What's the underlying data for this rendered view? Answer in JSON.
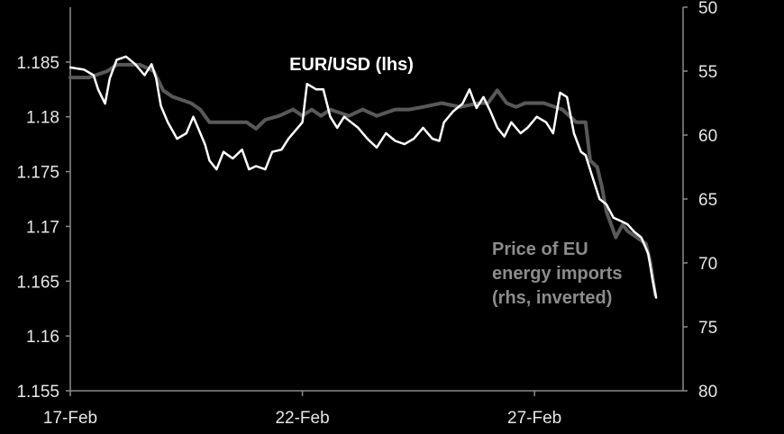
{
  "chart_data": {
    "type": "line",
    "title": "",
    "x_ticks": [
      {
        "day": 0,
        "label": "17-Feb"
      },
      {
        "day": 5,
        "label": "22-Feb"
      },
      {
        "day": 10,
        "label": "27-Feb"
      }
    ],
    "x_range": [
      0,
      13.2
    ],
    "left_axis": {
      "range": [
        1.155,
        1.19
      ],
      "ticks": [
        "1.155",
        "1.16",
        "1.165",
        "1.17",
        "1.175",
        "1.18",
        "1.185"
      ]
    },
    "right_axis": {
      "range": [
        50,
        80
      ],
      "inverted": true,
      "ticks": [
        "50",
        "55",
        "60",
        "65",
        "70",
        "75",
        "80"
      ]
    },
    "grid": false,
    "series": [
      {
        "name": "EUR/USD (lhs)",
        "label_lines": [
          "EUR/USD (lhs)"
        ],
        "axis": "left",
        "color": "#ffffff",
        "points": [
          [
            0.0,
            1.1845
          ],
          [
            0.3,
            1.1843
          ],
          [
            0.5,
            1.1838
          ],
          [
            0.6,
            1.1825
          ],
          [
            0.75,
            1.1812
          ],
          [
            0.85,
            1.1835
          ],
          [
            1.0,
            1.1852
          ],
          [
            1.2,
            1.1855
          ],
          [
            1.4,
            1.1848
          ],
          [
            1.6,
            1.1838
          ],
          [
            1.75,
            1.1848
          ],
          [
            1.85,
            1.1835
          ],
          [
            1.95,
            1.181
          ],
          [
            2.1,
            1.1795
          ],
          [
            2.3,
            1.178
          ],
          [
            2.5,
            1.1785
          ],
          [
            2.65,
            1.18
          ],
          [
            2.75,
            1.179
          ],
          [
            2.9,
            1.1775
          ],
          [
            3.0,
            1.176
          ],
          [
            3.15,
            1.1752
          ],
          [
            3.3,
            1.1768
          ],
          [
            3.5,
            1.1762
          ],
          [
            3.7,
            1.177
          ],
          [
            3.85,
            1.1752
          ],
          [
            4.0,
            1.1755
          ],
          [
            4.2,
            1.1752
          ],
          [
            4.35,
            1.1768
          ],
          [
            4.55,
            1.177
          ],
          [
            4.7,
            1.178
          ],
          [
            4.9,
            1.179
          ],
          [
            5.0,
            1.1795
          ],
          [
            5.1,
            1.183
          ],
          [
            5.3,
            1.1825
          ],
          [
            5.45,
            1.1825
          ],
          [
            5.6,
            1.18
          ],
          [
            5.75,
            1.179
          ],
          [
            5.9,
            1.18
          ],
          [
            6.05,
            1.1795
          ],
          [
            6.2,
            1.179
          ],
          [
            6.4,
            1.178
          ],
          [
            6.6,
            1.1772
          ],
          [
            6.8,
            1.1785
          ],
          [
            7.0,
            1.1778
          ],
          [
            7.2,
            1.1775
          ],
          [
            7.4,
            1.178
          ],
          [
            7.6,
            1.179
          ],
          [
            7.8,
            1.178
          ],
          [
            7.95,
            1.1778
          ],
          [
            8.05,
            1.1795
          ],
          [
            8.25,
            1.1805
          ],
          [
            8.45,
            1.1812
          ],
          [
            8.6,
            1.1825
          ],
          [
            8.75,
            1.1808
          ],
          [
            8.9,
            1.1818
          ],
          [
            9.05,
            1.1805
          ],
          [
            9.2,
            1.179
          ],
          [
            9.35,
            1.1782
          ],
          [
            9.5,
            1.1795
          ],
          [
            9.7,
            1.1785
          ],
          [
            9.85,
            1.179
          ],
          [
            10.05,
            1.18
          ],
          [
            10.25,
            1.1795
          ],
          [
            10.4,
            1.1785
          ],
          [
            10.55,
            1.1822
          ],
          [
            10.7,
            1.1818
          ],
          [
            10.85,
            1.1785
          ],
          [
            11.0,
            1.1768
          ],
          [
            11.1,
            1.1765
          ],
          [
            11.25,
            1.1745
          ],
          [
            11.4,
            1.1725
          ],
          [
            11.55,
            1.172
          ],
          [
            11.7,
            1.1708
          ],
          [
            11.85,
            1.1705
          ],
          [
            12.0,
            1.1702
          ],
          [
            12.15,
            1.1695
          ],
          [
            12.3,
            1.169
          ],
          [
            12.45,
            1.1675
          ],
          [
            12.55,
            1.165
          ],
          [
            12.62,
            1.1635
          ]
        ]
      },
      {
        "name": "Price of EU energy imports (rhs, inverted)",
        "label_lines": [
          "Price of EU",
          "energy imports",
          "(rhs, inverted)"
        ],
        "axis": "right",
        "color": "#595959",
        "points": [
          [
            0.0,
            55.5
          ],
          [
            0.4,
            55.5
          ],
          [
            0.8,
            55.0
          ],
          [
            1.0,
            54.5
          ],
          [
            1.5,
            54.5
          ],
          [
            1.8,
            55.0
          ],
          [
            2.0,
            56.5
          ],
          [
            2.2,
            57.0
          ],
          [
            2.6,
            57.5
          ],
          [
            2.8,
            58.0
          ],
          [
            3.0,
            59.0
          ],
          [
            3.4,
            59.0
          ],
          [
            3.8,
            59.0
          ],
          [
            4.0,
            59.5
          ],
          [
            4.2,
            58.8
          ],
          [
            4.5,
            58.5
          ],
          [
            4.8,
            58.0
          ],
          [
            5.0,
            58.5
          ],
          [
            5.2,
            58.0
          ],
          [
            5.4,
            58.5
          ],
          [
            5.6,
            58.0
          ],
          [
            6.0,
            58.5
          ],
          [
            6.3,
            58.0
          ],
          [
            6.6,
            58.5
          ],
          [
            7.0,
            58.0
          ],
          [
            7.3,
            58.0
          ],
          [
            7.6,
            57.8
          ],
          [
            8.0,
            57.5
          ],
          [
            8.4,
            57.8
          ],
          [
            8.8,
            57.5
          ],
          [
            9.0,
            57.5
          ],
          [
            9.2,
            56.5
          ],
          [
            9.4,
            57.5
          ],
          [
            9.6,
            57.8
          ],
          [
            9.8,
            57.5
          ],
          [
            10.2,
            57.5
          ],
          [
            10.6,
            58.0
          ],
          [
            10.9,
            59.0
          ],
          [
            11.1,
            59.0
          ],
          [
            11.2,
            62.0
          ],
          [
            11.35,
            62.5
          ],
          [
            11.45,
            64.0
          ],
          [
            11.55,
            66.0
          ],
          [
            11.65,
            67.0
          ],
          [
            11.75,
            68.0
          ],
          [
            11.9,
            67.0
          ],
          [
            12.0,
            67.5
          ],
          [
            12.2,
            68.0
          ],
          [
            12.4,
            68.5
          ],
          [
            12.5,
            70.0
          ],
          [
            12.6,
            72.5
          ]
        ]
      }
    ]
  }
}
